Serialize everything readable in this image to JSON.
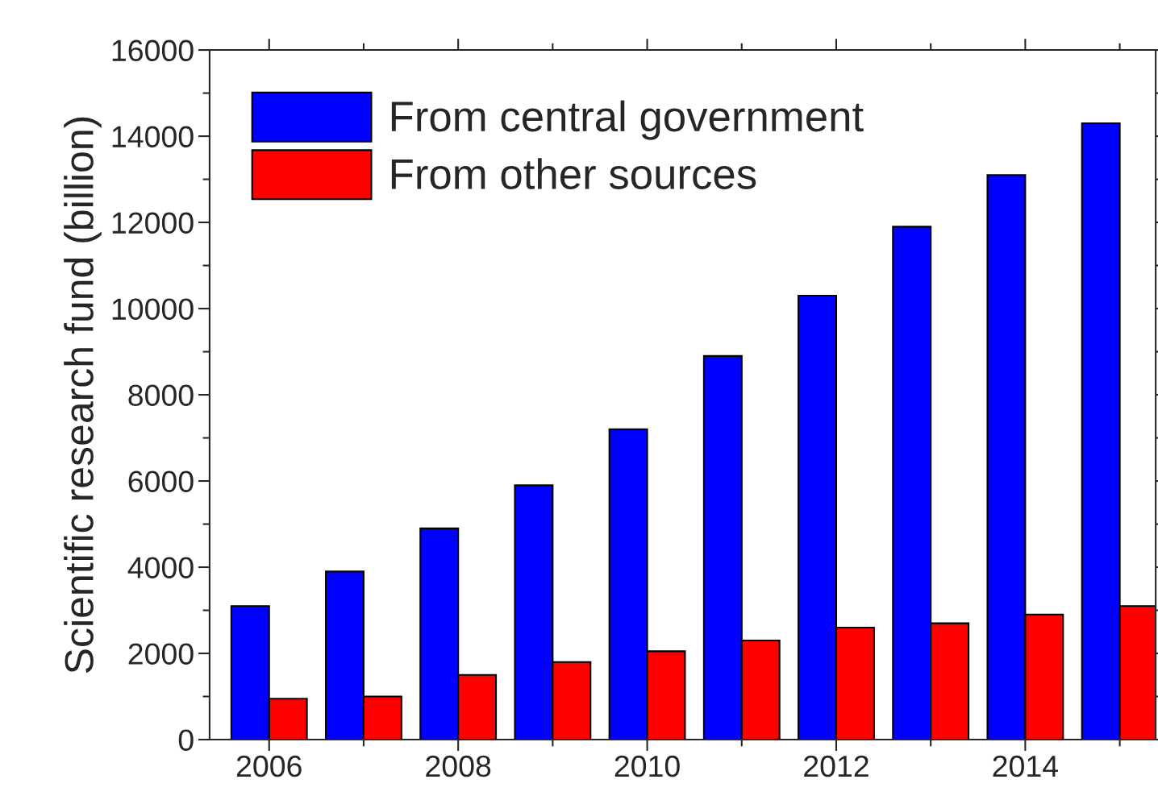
{
  "chart_data": {
    "type": "bar",
    "ylabel": "Scientific research fund (billion)",
    "x": [
      2006,
      2007,
      2008,
      2009,
      2010,
      2011,
      2012,
      2013,
      2014,
      2015
    ],
    "series": [
      {
        "name": "From central government",
        "color": "#0000ff",
        "values": [
          3100,
          3900,
          4900,
          5900,
          7200,
          8900,
          10300,
          11900,
          13100,
          14300
        ]
      },
      {
        "name": "From other sources",
        "color": "#ff0000",
        "values": [
          950,
          1000,
          1500,
          1800,
          2050,
          2300,
          2600,
          2700,
          2900,
          3100
        ]
      }
    ],
    "xlim": [
      2005.37,
      2015.38
    ],
    "xticks": [
      2006,
      2008,
      2010,
      2012,
      2014
    ],
    "ylim": [
      0,
      16000
    ],
    "yticks": [
      0,
      2000,
      4000,
      6000,
      8000,
      10000,
      12000,
      14000,
      16000
    ],
    "grid": false,
    "legend": "top left"
  }
}
